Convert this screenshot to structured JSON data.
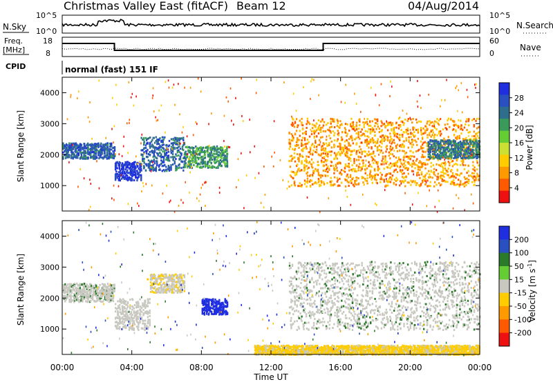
{
  "header": {
    "station": "Christmas Valley East (fitACF)",
    "beam": "Beam 12",
    "date": "04/Aug/2014"
  },
  "noise_panel": {
    "left_label": "N.Sky",
    "right_label": "N.Search",
    "left_ticks": [
      "10^5",
      "10^0"
    ],
    "right_ticks": [
      "10^5",
      "10^0"
    ]
  },
  "freq_panel": {
    "left_label_1": "Freq.",
    "left_label_2": "[MHz]",
    "right_label": "Nave",
    "left_ticks": [
      "18",
      "8"
    ],
    "right_ticks": [
      "60",
      "0"
    ]
  },
  "cpid": {
    "label": "CPID",
    "value": "normal (fast) 151 IF"
  },
  "colors": {
    "power_scale": [
      "#1f2fe0",
      "#2a4fc0",
      "#2e6e8c",
      "#3a9a5a",
      "#66cc33",
      "#cce033",
      "#ffcc00",
      "#ff9900",
      "#ff5a00",
      "#ee1111"
    ],
    "velocity_scale": [
      "#1f2fe0",
      "#2a4fc0",
      "#2a7a2a",
      "#66cc33",
      "#c8c8c0",
      "#ffcc00",
      "#ff9900",
      "#ff5a00",
      "#ee1111"
    ],
    "ground_scatter": "#c8c8c0"
  },
  "chart_data": [
    {
      "type": "heatmap",
      "name": "power",
      "xlabel": "",
      "ylabel": "Slant Range [km]",
      "xlim": [
        "00:00",
        "24:00"
      ],
      "ylim": [
        180,
        4500
      ],
      "x_tick_labels": [
        "00:00",
        "04:00",
        "08:00",
        "12:00",
        "16:00",
        "20:00",
        "00:00"
      ],
      "y_tick_labels": [
        "1000",
        "2000",
        "3000",
        "4000"
      ],
      "colorbar": {
        "label": "Power [dB]",
        "range": [
          0,
          30
        ],
        "ticks": [
          "28",
          "24",
          "20",
          "16",
          "12",
          "8",
          "4"
        ]
      },
      "features": [
        {
          "start": "00:00",
          "end": "03:00",
          "range_km": [
            1900,
            2400
          ],
          "value": 24
        },
        {
          "start": "03:00",
          "end": "04:30",
          "range_km": [
            1200,
            1800
          ],
          "value": 28
        },
        {
          "start": "04:30",
          "end": "07:00",
          "range_km": [
            1500,
            2600
          ],
          "value": 24
        },
        {
          "start": "07:00",
          "end": "09:30",
          "range_km": [
            1600,
            2300
          ],
          "value": 20
        },
        {
          "start": "13:00",
          "end": "23:59",
          "range_km": [
            1000,
            3200
          ],
          "value": 8
        },
        {
          "start": "21:00",
          "end": "23:59",
          "range_km": [
            1900,
            2500
          ],
          "value": 22
        }
      ]
    },
    {
      "type": "heatmap",
      "name": "velocity",
      "xlabel": "Time UT",
      "ylabel": "Slant Range [km]",
      "xlim": [
        "00:00",
        "24:00"
      ],
      "ylim": [
        180,
        4500
      ],
      "x_tick_labels": [
        "00:00",
        "04:00",
        "08:00",
        "12:00",
        "16:00",
        "20:00",
        "00:00"
      ],
      "y_tick_labels": [
        "1000",
        "2000",
        "3000",
        "4000"
      ],
      "colorbar": {
        "label_main": "Velocity [m s",
        "label_sup": "-1",
        "label_end": "]",
        "ticks": [
          "200",
          "100",
          "50",
          "15",
          "-15",
          "-50",
          "-100",
          "-200"
        ]
      },
      "features": [
        {
          "start": "00:00",
          "end": "03:00",
          "range_km": [
            1900,
            2500
          ],
          "value": 0
        },
        {
          "start": "03:00",
          "end": "05:00",
          "range_km": [
            1000,
            2000
          ],
          "value": -30
        },
        {
          "start": "05:00",
          "end": "07:00",
          "range_km": [
            2200,
            2800
          ],
          "value": -40
        },
        {
          "start": "08:00",
          "end": "09:30",
          "range_km": [
            1500,
            2000
          ],
          "value": 250
        },
        {
          "start": "13:00",
          "end": "23:59",
          "range_km": [
            1000,
            3200
          ],
          "value": 0
        },
        {
          "start": "11:00",
          "end": "23:59",
          "range_km": [
            200,
            500
          ],
          "value": -60
        }
      ]
    }
  ]
}
